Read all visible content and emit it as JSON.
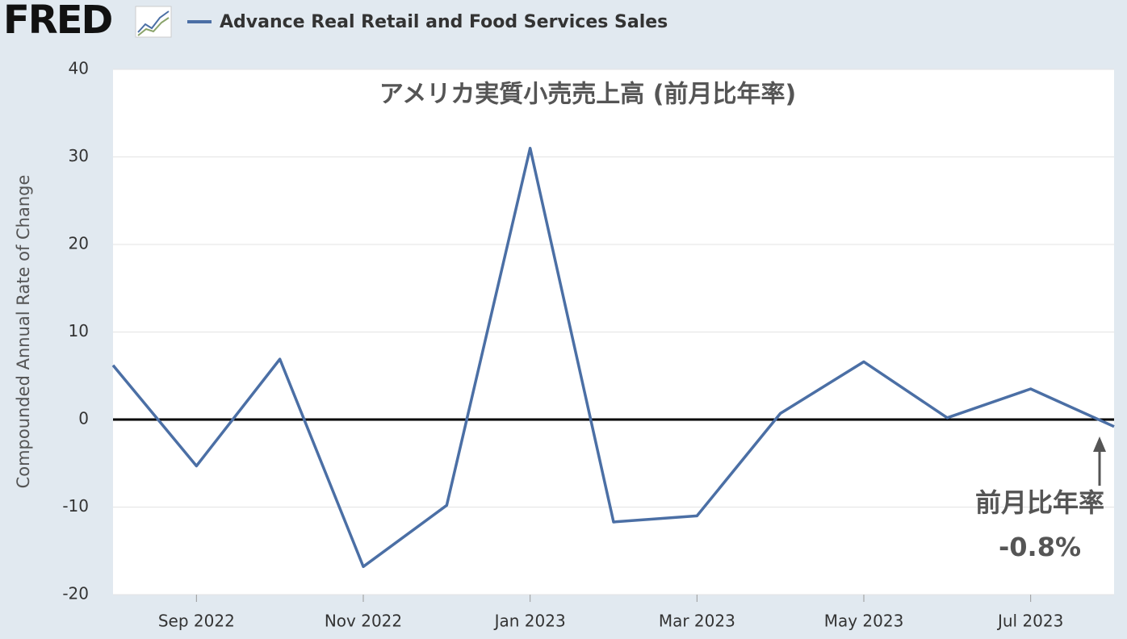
{
  "header": {
    "logo": "FRED"
  },
  "chart_data": {
    "type": "line",
    "title": "アメリカ実質小売売上高 (前月比年率)",
    "y_label": "Compounded Annual Rate of Change",
    "categories": [
      null,
      "Sep 2022",
      null,
      "Nov 2022",
      null,
      "Jan 2023",
      null,
      "Mar 2023",
      null,
      "May 2023",
      null,
      "Jul 2023",
      null
    ],
    "series": [
      {
        "name": "Advance Real Retail and Food Services Sales",
        "color": "#4b6fa5",
        "values": [
          6.2,
          -5.3,
          6.9,
          -16.8,
          -9.8,
          31.0,
          -11.7,
          -11.0,
          0.7,
          6.6,
          0.2,
          3.5,
          -0.8
        ]
      }
    ],
    "ylim": [
      -20,
      40
    ],
    "yticks": [
      -20,
      -10,
      0,
      10,
      20,
      30,
      40
    ],
    "grid": true,
    "annotations": [
      "前月比年率",
      "-0.8%"
    ]
  }
}
